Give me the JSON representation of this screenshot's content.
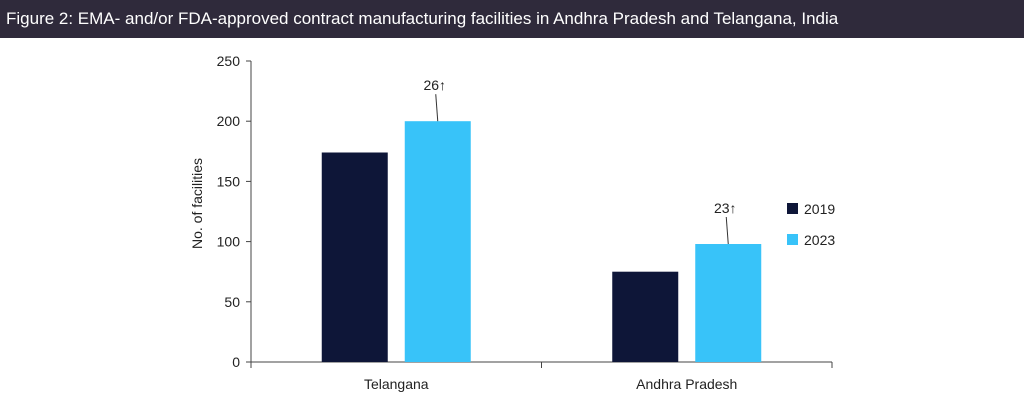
{
  "chart_data": {
    "type": "bar",
    "title": "Figure 2: EMA- and/or FDA-approved contract manufacturing facilities in Andhra Pradesh and Telangana, India",
    "xlabel": "",
    "ylabel": "No. of facilities",
    "ylim": [
      0,
      250
    ],
    "yticks": [
      0,
      50,
      100,
      150,
      200,
      250
    ],
    "categories": [
      "Telangana",
      "Andhra Pradesh"
    ],
    "series": [
      {
        "name": "2019",
        "color": "#0e1638",
        "values": [
          174,
          75
        ]
      },
      {
        "name": "2023",
        "color": "#38c3f9",
        "values": [
          200,
          98
        ]
      }
    ],
    "annotations": [
      {
        "category_index": 0,
        "series_index": 1,
        "label": "26↑"
      },
      {
        "category_index": 1,
        "series_index": 1,
        "label": "23↑"
      }
    ],
    "legend_position": "right"
  }
}
